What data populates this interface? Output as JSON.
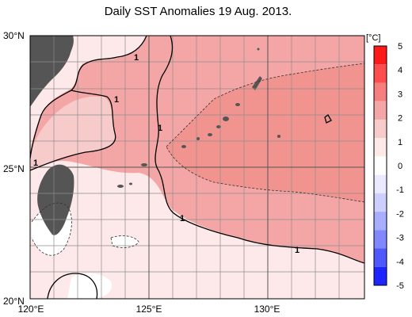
{
  "title": "Daily SST Anomalies 19 Aug. 2013.",
  "axes": {
    "lat_labels": [
      "30°N",
      "25°N",
      "20°N"
    ],
    "lon_labels": [
      "120°E",
      "125°E",
      "130°E"
    ]
  },
  "colorbar": {
    "unit": "[°C]",
    "ticks": [
      "5",
      "4",
      "3",
      "2",
      "1",
      "0",
      "-1",
      "-2",
      "-3",
      "-4",
      "-5"
    ],
    "colors": [
      "#ff1a1a",
      "#ff4d4d",
      "#f77e7e",
      "#f4a5a5",
      "#f8cbcb",
      "#fde9e9",
      "#ffffff",
      "#e9e9ff",
      "#cdd0ff",
      "#a9adff",
      "#8087ff",
      "#4f57ff",
      "#1e24ff"
    ]
  },
  "map": {
    "land_color": "#555555",
    "contour_labels": [
      "1",
      "1",
      "1",
      "1",
      "1",
      "1"
    ]
  }
}
